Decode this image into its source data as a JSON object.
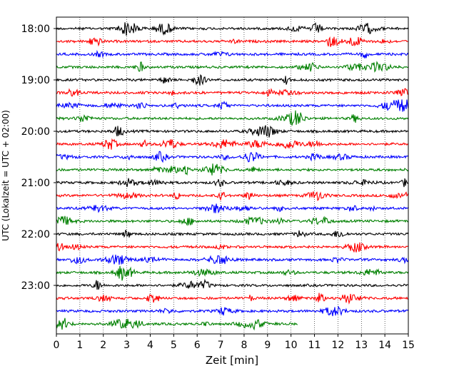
{
  "chart_data": {
    "type": "line",
    "title": "",
    "xlabel": "Zeit  [min]",
    "ylabel": "UTC (Lokalzeit = UTC + 02:00)",
    "xlim": [
      0,
      15
    ],
    "x_ticks": [
      "0",
      "1",
      "2",
      "3",
      "4",
      "5",
      "6",
      "7",
      "8",
      "9",
      "10",
      "11",
      "12",
      "13",
      "14",
      "15"
    ],
    "y_ticks": [
      {
        "label": "18:00",
        "row": 0
      },
      {
        "label": "19:00",
        "row": 4
      },
      {
        "label": "20:00",
        "row": 8
      },
      {
        "label": "21:00",
        "row": 12
      },
      {
        "label": "22:00",
        "row": 16
      },
      {
        "label": "23:00",
        "row": 20
      }
    ],
    "row_interval_minutes": 15,
    "row_colors": [
      "#000000",
      "#ff0000",
      "#0000ff",
      "#008000"
    ],
    "traces": [
      {
        "start": "18:00",
        "end_minute": 15
      },
      {
        "start": "18:15",
        "end_minute": 15
      },
      {
        "start": "18:30",
        "end_minute": 15
      },
      {
        "start": "18:45",
        "end_minute": 15
      },
      {
        "start": "19:00",
        "end_minute": 15
      },
      {
        "start": "19:15",
        "end_minute": 15
      },
      {
        "start": "19:30",
        "end_minute": 15
      },
      {
        "start": "19:45",
        "end_minute": 15
      },
      {
        "start": "20:00",
        "end_minute": 15
      },
      {
        "start": "20:15",
        "end_minute": 15
      },
      {
        "start": "20:30",
        "end_minute": 15
      },
      {
        "start": "20:45",
        "end_minute": 15
      },
      {
        "start": "21:00",
        "end_minute": 15
      },
      {
        "start": "21:15",
        "end_minute": 15
      },
      {
        "start": "21:30",
        "end_minute": 15
      },
      {
        "start": "21:45",
        "end_minute": 15
      },
      {
        "start": "22:00",
        "end_minute": 15
      },
      {
        "start": "22:15",
        "end_minute": 15
      },
      {
        "start": "22:30",
        "end_minute": 15
      },
      {
        "start": "22:45",
        "end_minute": 15
      },
      {
        "start": "23:00",
        "end_minute": 15
      },
      {
        "start": "23:15",
        "end_minute": 15
      },
      {
        "start": "23:30",
        "end_minute": 15
      },
      {
        "start": "23:45",
        "end_minute": 10.3
      }
    ],
    "vertical_grid": "dotted",
    "legend": "none"
  }
}
